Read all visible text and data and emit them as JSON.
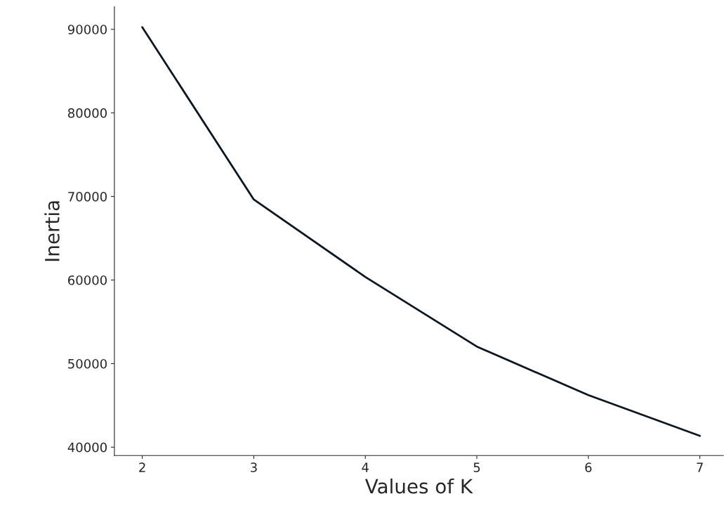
{
  "chart_data": {
    "type": "line",
    "xlabel": "Values of K",
    "ylabel": "Inertia",
    "x": [
      2,
      3,
      4,
      5,
      6,
      7
    ],
    "series": [
      {
        "color": "#0a1621",
        "values": [
          90250,
          69630,
          60370,
          52040,
          46230,
          41350
        ]
      }
    ],
    "xlim": [
      1.75,
      7.21
    ],
    "xticks": [
      2,
      3,
      4,
      5,
      6,
      7
    ],
    "ylim": [
      39000,
      92700
    ],
    "yticks": [
      40000,
      50000,
      60000,
      70000,
      80000,
      90000
    ],
    "grid": false,
    "legend": false
  }
}
